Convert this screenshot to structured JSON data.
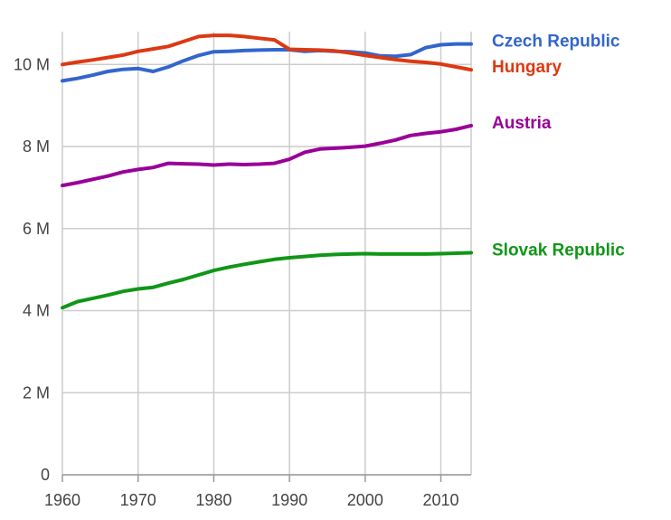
{
  "chart_data": {
    "type": "line",
    "title": "",
    "xlabel": "",
    "ylabel": "",
    "xlim": [
      1960,
      2014
    ],
    "ylim": [
      0,
      10800000
    ],
    "grid": true,
    "legend_placement": "right",
    "x_ticks": [
      1960,
      1970,
      1980,
      1990,
      2000,
      2010
    ],
    "x_tick_labels": [
      "1960",
      "1970",
      "1980",
      "1990",
      "2000",
      "2010"
    ],
    "y_ticks": [
      0,
      2000000,
      4000000,
      6000000,
      8000000,
      10000000
    ],
    "y_tick_labels": [
      "0",
      "2 M",
      "4 M",
      "6 M",
      "8 M",
      "10 M"
    ],
    "x": [
      1960,
      1962,
      1964,
      1966,
      1968,
      1970,
      1972,
      1974,
      1976,
      1978,
      1980,
      1982,
      1984,
      1986,
      1988,
      1990,
      1992,
      1994,
      1996,
      1998,
      2000,
      2002,
      2004,
      2006,
      2008,
      2010,
      2012,
      2014
    ],
    "series": [
      {
        "name": "Czech Republic",
        "color": "#3366cc",
        "values": [
          9600000,
          9660000,
          9740000,
          9830000,
          9880000,
          9900000,
          9830000,
          9940000,
          10090000,
          10220000,
          10310000,
          10320000,
          10340000,
          10350000,
          10360000,
          10360000,
          10320000,
          10340000,
          10320000,
          10310000,
          10280000,
          10210000,
          10200000,
          10240000,
          10410000,
          10480000,
          10500000,
          10500000
        ]
      },
      {
        "name": "Hungary",
        "color": "#dc3912",
        "values": [
          10000000,
          10060000,
          10110000,
          10170000,
          10230000,
          10320000,
          10380000,
          10440000,
          10560000,
          10680000,
          10710000,
          10710000,
          10680000,
          10640000,
          10600000,
          10370000,
          10360000,
          10350000,
          10330000,
          10280000,
          10220000,
          10170000,
          10120000,
          10080000,
          10050000,
          10010000,
          9940000,
          9870000
        ]
      },
      {
        "name": "Austria",
        "color": "#990099",
        "values": [
          7050000,
          7120000,
          7200000,
          7280000,
          7380000,
          7440000,
          7490000,
          7590000,
          7580000,
          7570000,
          7550000,
          7570000,
          7560000,
          7570000,
          7590000,
          7690000,
          7860000,
          7940000,
          7960000,
          7980000,
          8010000,
          8080000,
          8160000,
          8270000,
          8320000,
          8360000,
          8420000,
          8510000
        ]
      },
      {
        "name": "Slovak Republic",
        "color": "#109618",
        "values": [
          4070000,
          4220000,
          4300000,
          4380000,
          4470000,
          4530000,
          4570000,
          4670000,
          4760000,
          4870000,
          4980000,
          5060000,
          5130000,
          5190000,
          5250000,
          5290000,
          5320000,
          5350000,
          5370000,
          5380000,
          5390000,
          5380000,
          5380000,
          5380000,
          5380000,
          5390000,
          5400000,
          5410000
        ]
      }
    ]
  }
}
